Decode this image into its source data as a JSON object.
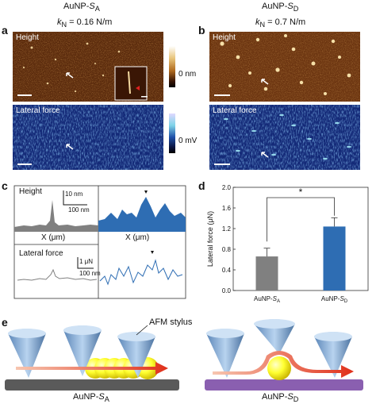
{
  "figure": {
    "header_left": "AuNP-",
    "header_left_sub": "S",
    "header_left_subscript": "A",
    "header_right": "AuNP-",
    "header_right_sub": "S",
    "header_right_subscript": "D",
    "kn_left": "k",
    "kn_left_sub": "N",
    "kn_left_val": " = 0.16 N/m",
    "kn_right": "k",
    "kn_right_sub": "N",
    "kn_right_val": " = 0.7 N/m"
  },
  "panel_labels": {
    "a": "a",
    "b": "b",
    "c": "c",
    "d": "d",
    "e": "e"
  },
  "afm": {
    "height_label": "Height",
    "lateral_label": "Lateral force",
    "height_bar_label": "0 nm",
    "lateral_bar_label": "0 mV",
    "height_colors": [
      "#ffffff",
      "#e8c47a",
      "#b06a1f",
      "#3a1605",
      "#000000"
    ],
    "lateral_colors": [
      "#ffffff",
      "#7fd4e8",
      "#1e4fa8",
      "#0a1440",
      "#000000"
    ]
  },
  "profiles": {
    "height_label": "Height",
    "lateral_label": "Lateral force",
    "scale_h_vert": "10 nm",
    "scale_h_horiz": "100 nm",
    "scale_l_vert": "1 μN",
    "scale_l_horiz": "100 nm",
    "xlabel_left": "X (μm)",
    "xlabel_right": "X (μm)",
    "color_left": "#808080",
    "color_right": "#2e6db3"
  },
  "chart_data": {
    "type": "bar",
    "categories": [
      "AuNP-SA",
      "AuNP-SD"
    ],
    "category_display": [
      {
        "pre": "AuNP-",
        "s": "S",
        "sub": "A"
      },
      {
        "pre": "AuNP-",
        "s": "S",
        "sub": "D"
      }
    ],
    "values": [
      0.66,
      1.24
    ],
    "errors": [
      0.16,
      0.17
    ],
    "colors": [
      "#808080",
      "#2e6db3"
    ],
    "ylabel": "Lateral force (μN)",
    "ylim": [
      0,
      2.0
    ],
    "yticks": [
      "0.0",
      "0.4",
      "0.8",
      "1.2",
      "1.6",
      "2.0"
    ],
    "significance": "*"
  },
  "schematic": {
    "stylus_label": "AFM stylus",
    "left_pre": "AuNP-",
    "left_s": "S",
    "left_sub": "A",
    "right_pre": "AuNP-",
    "right_s": "S",
    "right_sub": "D"
  }
}
